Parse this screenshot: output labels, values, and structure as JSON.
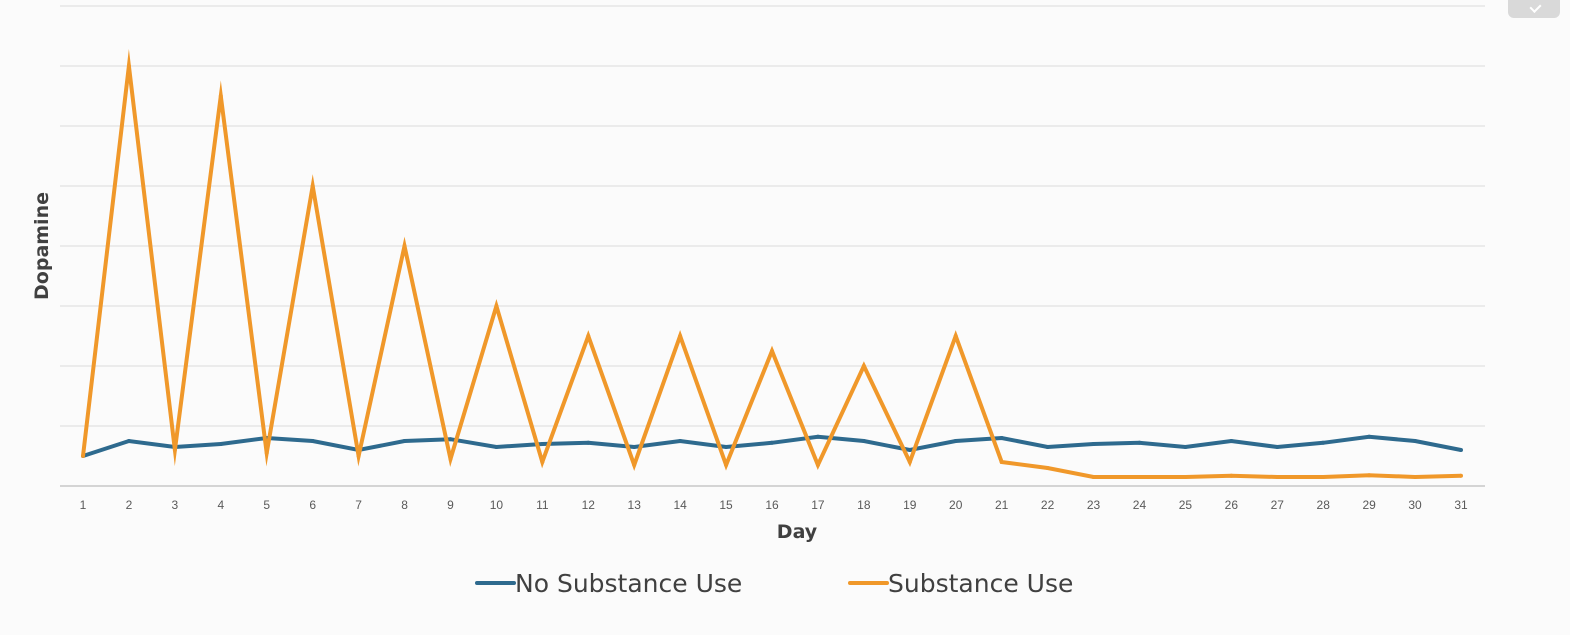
{
  "chart_data": {
    "type": "line",
    "title": "",
    "xlabel": "Day",
    "ylabel": "Dopamine",
    "categories": [
      "1",
      "2",
      "3",
      "4",
      "5",
      "6",
      "7",
      "8",
      "9",
      "10",
      "11",
      "12",
      "13",
      "14",
      "15",
      "16",
      "17",
      "18",
      "19",
      "20",
      "21",
      "22",
      "23",
      "24",
      "25",
      "26",
      "27",
      "28",
      "29",
      "30",
      "31"
    ],
    "ylim": [
      0,
      8
    ],
    "y_tick_labels_shown": false,
    "grid": true,
    "legend": "bottom",
    "series": [
      {
        "name": "No Substance Use",
        "color": "#2e6a8e",
        "values": [
          0.5,
          0.75,
          0.65,
          0.7,
          0.8,
          0.75,
          0.6,
          0.75,
          0.78,
          0.65,
          0.7,
          0.72,
          0.65,
          0.75,
          0.65,
          0.72,
          0.82,
          0.75,
          0.6,
          0.75,
          0.8,
          0.65,
          0.7,
          0.72,
          0.65,
          0.75,
          0.65,
          0.72,
          0.82,
          0.75,
          0.6
        ]
      },
      {
        "name": "Substance Use",
        "color": "#f0982a",
        "values": [
          0.5,
          7.0,
          0.6,
          6.5,
          0.55,
          5.0,
          0.5,
          4.0,
          0.45,
          3.0,
          0.4,
          2.5,
          0.35,
          2.5,
          0.35,
          2.25,
          0.35,
          2.0,
          0.4,
          2.5,
          0.4,
          0.3,
          0.15,
          0.15,
          0.15,
          0.17,
          0.15,
          0.15,
          0.18,
          0.15,
          0.17
        ]
      }
    ]
  }
}
